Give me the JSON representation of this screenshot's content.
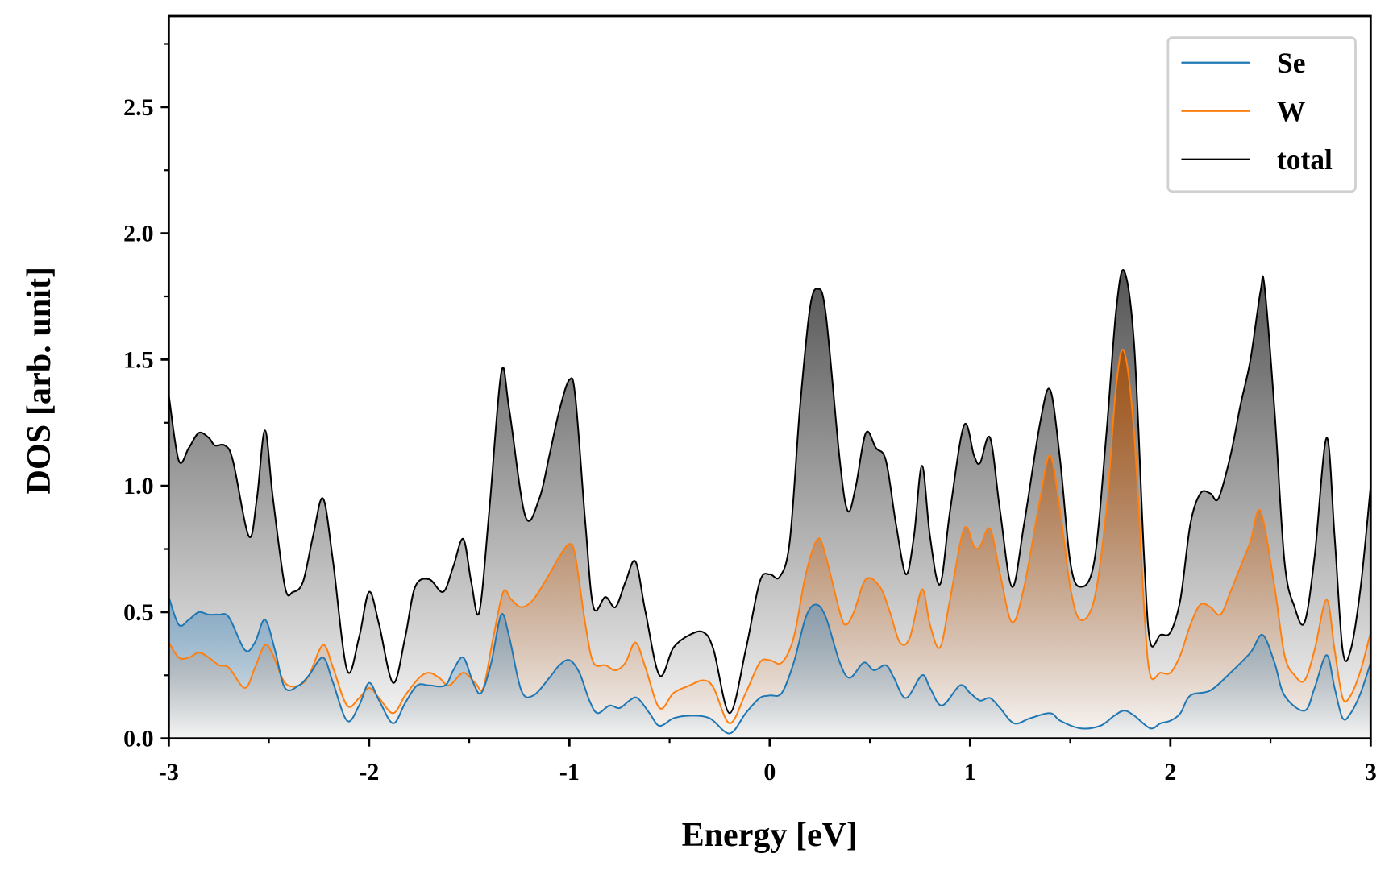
{
  "chart_data": {
    "type": "area",
    "title": "",
    "xlabel": "Energy [eV]",
    "ylabel": "DOS [arb. unit]",
    "xlim": [
      -3,
      3
    ],
    "ylim": [
      0,
      2.86
    ],
    "xticks": [
      -3,
      -2,
      -1,
      0,
      1,
      2,
      3
    ],
    "xtick_labels": [
      "-3",
      "-2",
      "-1",
      "0",
      "1",
      "2",
      "3"
    ],
    "yticks": [
      0,
      0.5,
      1,
      1.5,
      2,
      2.5
    ],
    "ytick_labels": [
      "0.0",
      "0.5",
      "1.0",
      "1.5",
      "2.0",
      "2.5"
    ],
    "grid": false,
    "legend_placement": "top-right",
    "series": [
      {
        "name": "Se",
        "color": "#1f77b4",
        "fill": "#1f77b4",
        "x": [
          -3,
          -2.95,
          -2.9,
          -2.85,
          -2.8,
          -2.75,
          -2.7,
          -2.62,
          -2.57,
          -2.52,
          -2.47,
          -2.42,
          -2.35,
          -2.3,
          -2.23,
          -2.18,
          -2.11,
          -2.05,
          -2,
          -1.95,
          -1.88,
          -1.82,
          -1.76,
          -1.7,
          -1.62,
          -1.58,
          -1.53,
          -1.48,
          -1.44,
          -1.39,
          -1.34,
          -1.3,
          -1.24,
          -1.18,
          -1.1,
          -1.05,
          -1,
          -0.95,
          -0.9,
          -0.86,
          -0.8,
          -0.75,
          -0.7,
          -0.66,
          -0.6,
          -0.55,
          -0.48,
          -0.4,
          -0.3,
          -0.2,
          -0.12,
          -0.05,
          0,
          0.06,
          0.12,
          0.18,
          0.23,
          0.28,
          0.35,
          0.4,
          0.47,
          0.52,
          0.58,
          0.62,
          0.68,
          0.76,
          0.8,
          0.86,
          0.95,
          1,
          1.05,
          1.1,
          1.15,
          1.22,
          1.3,
          1.4,
          1.45,
          1.55,
          1.65,
          1.72,
          1.77,
          1.82,
          1.9,
          1.95,
          2,
          2.05,
          2.1,
          2.2,
          2.3,
          2.4,
          2.46,
          2.52,
          2.57,
          2.67,
          2.72,
          2.78,
          2.82,
          2.86,
          2.9,
          2.95,
          3
        ],
        "y": [
          0.56,
          0.45,
          0.47,
          0.5,
          0.49,
          0.49,
          0.48,
          0.35,
          0.38,
          0.47,
          0.35,
          0.2,
          0.21,
          0.25,
          0.32,
          0.22,
          0.07,
          0.13,
          0.22,
          0.15,
          0.06,
          0.14,
          0.21,
          0.21,
          0.21,
          0.27,
          0.32,
          0.22,
          0.18,
          0.3,
          0.49,
          0.4,
          0.19,
          0.17,
          0.24,
          0.29,
          0.31,
          0.26,
          0.15,
          0.1,
          0.13,
          0.12,
          0.15,
          0.16,
          0.1,
          0.05,
          0.08,
          0.09,
          0.08,
          0.02,
          0.1,
          0.16,
          0.17,
          0.18,
          0.3,
          0.48,
          0.53,
          0.48,
          0.3,
          0.24,
          0.3,
          0.27,
          0.29,
          0.24,
          0.16,
          0.25,
          0.2,
          0.13,
          0.21,
          0.18,
          0.15,
          0.16,
          0.12,
          0.06,
          0.08,
          0.1,
          0.07,
          0.04,
          0.05,
          0.09,
          0.11,
          0.09,
          0.04,
          0.06,
          0.07,
          0.1,
          0.17,
          0.19,
          0.26,
          0.34,
          0.41,
          0.3,
          0.17,
          0.11,
          0.2,
          0.33,
          0.2,
          0.08,
          0.1,
          0.18,
          0.3
        ]
      },
      {
        "name": "W",
        "color": "#ff7f0e",
        "fill": "#a0500f",
        "x": [
          -3,
          -2.95,
          -2.9,
          -2.85,
          -2.8,
          -2.75,
          -2.7,
          -2.62,
          -2.57,
          -2.52,
          -2.48,
          -2.42,
          -2.35,
          -2.3,
          -2.23,
          -2.18,
          -2.11,
          -2.05,
          -2,
          -1.95,
          -1.88,
          -1.82,
          -1.75,
          -1.7,
          -1.65,
          -1.6,
          -1.53,
          -1.47,
          -1.43,
          -1.38,
          -1.33,
          -1.29,
          -1.24,
          -1.18,
          -1.1,
          -1.05,
          -1,
          -0.97,
          -0.92,
          -0.88,
          -0.82,
          -0.77,
          -0.72,
          -0.67,
          -0.62,
          -0.55,
          -0.48,
          -0.4,
          -0.33,
          -0.28,
          -0.2,
          -0.12,
          -0.05,
          0,
          0.06,
          0.12,
          0.18,
          0.24,
          0.28,
          0.35,
          0.38,
          0.42,
          0.48,
          0.55,
          0.6,
          0.65,
          0.7,
          0.76,
          0.8,
          0.85,
          0.9,
          0.97,
          1.02,
          1.05,
          1.1,
          1.15,
          1.21,
          1.27,
          1.35,
          1.4,
          1.45,
          1.5,
          1.55,
          1.62,
          1.68,
          1.73,
          1.77,
          1.82,
          1.87,
          1.9,
          1.95,
          2,
          2.05,
          2.1,
          2.15,
          2.2,
          2.25,
          2.3,
          2.35,
          2.4,
          2.45,
          2.52,
          2.57,
          2.62,
          2.67,
          2.72,
          2.78,
          2.82,
          2.86,
          2.9,
          2.95,
          3
        ],
        "y": [
          0.38,
          0.32,
          0.32,
          0.34,
          0.32,
          0.29,
          0.28,
          0.2,
          0.28,
          0.37,
          0.33,
          0.22,
          0.21,
          0.25,
          0.37,
          0.28,
          0.13,
          0.16,
          0.2,
          0.16,
          0.1,
          0.17,
          0.24,
          0.26,
          0.24,
          0.21,
          0.26,
          0.22,
          0.2,
          0.4,
          0.58,
          0.55,
          0.52,
          0.55,
          0.65,
          0.72,
          0.77,
          0.72,
          0.45,
          0.3,
          0.29,
          0.27,
          0.3,
          0.38,
          0.28,
          0.12,
          0.18,
          0.21,
          0.23,
          0.2,
          0.06,
          0.18,
          0.3,
          0.31,
          0.3,
          0.4,
          0.65,
          0.79,
          0.72,
          0.5,
          0.45,
          0.5,
          0.63,
          0.6,
          0.5,
          0.38,
          0.4,
          0.59,
          0.45,
          0.36,
          0.55,
          0.83,
          0.76,
          0.76,
          0.83,
          0.65,
          0.46,
          0.6,
          0.95,
          1.12,
          0.9,
          0.6,
          0.47,
          0.55,
          0.9,
          1.4,
          1.53,
          1.2,
          0.5,
          0.25,
          0.26,
          0.26,
          0.33,
          0.45,
          0.53,
          0.52,
          0.49,
          0.58,
          0.68,
          0.78,
          0.9,
          0.6,
          0.33,
          0.25,
          0.23,
          0.35,
          0.55,
          0.35,
          0.16,
          0.17,
          0.27,
          0.42
        ]
      },
      {
        "name": "total",
        "color": "#000000",
        "fill": "#4a4a4a",
        "x": [
          -3,
          -2.95,
          -2.9,
          -2.85,
          -2.8,
          -2.77,
          -2.72,
          -2.68,
          -2.6,
          -2.56,
          -2.52,
          -2.48,
          -2.42,
          -2.38,
          -2.33,
          -2.28,
          -2.23,
          -2.18,
          -2.11,
          -2.05,
          -2,
          -1.95,
          -1.88,
          -1.82,
          -1.77,
          -1.7,
          -1.63,
          -1.58,
          -1.53,
          -1.49,
          -1.45,
          -1.4,
          -1.34,
          -1.3,
          -1.22,
          -1.15,
          -1.1,
          -1.05,
          -1,
          -0.97,
          -0.92,
          -0.88,
          -0.82,
          -0.77,
          -0.72,
          -0.67,
          -0.62,
          -0.55,
          -0.48,
          -0.4,
          -0.33,
          -0.28,
          -0.2,
          -0.12,
          -0.05,
          0,
          0.05,
          0.1,
          0.15,
          0.2,
          0.24,
          0.28,
          0.35,
          0.39,
          0.43,
          0.48,
          0.53,
          0.58,
          0.63,
          0.68,
          0.72,
          0.76,
          0.8,
          0.85,
          0.9,
          0.97,
          1.02,
          1.05,
          1.1,
          1.15,
          1.21,
          1.27,
          1.35,
          1.4,
          1.45,
          1.5,
          1.55,
          1.62,
          1.68,
          1.73,
          1.77,
          1.82,
          1.87,
          1.9,
          1.95,
          2,
          2.05,
          2.1,
          2.15,
          2.2,
          2.24,
          2.3,
          2.35,
          2.4,
          2.45,
          2.47,
          2.52,
          2.57,
          2.62,
          2.67,
          2.72,
          2.78,
          2.82,
          2.86,
          2.9,
          2.95,
          3
        ],
        "y": [
          1.36,
          1.1,
          1.15,
          1.21,
          1.19,
          1.16,
          1.16,
          1.1,
          0.8,
          0.95,
          1.22,
          0.95,
          0.6,
          0.58,
          0.62,
          0.8,
          0.95,
          0.7,
          0.27,
          0.4,
          0.58,
          0.45,
          0.22,
          0.4,
          0.6,
          0.63,
          0.58,
          0.68,
          0.79,
          0.62,
          0.5,
          0.9,
          1.45,
          1.3,
          0.88,
          0.95,
          1.12,
          1.3,
          1.42,
          1.35,
          0.85,
          0.52,
          0.56,
          0.52,
          0.62,
          0.7,
          0.5,
          0.25,
          0.36,
          0.41,
          0.42,
          0.35,
          0.1,
          0.35,
          0.62,
          0.65,
          0.64,
          0.78,
          1.3,
          1.7,
          1.78,
          1.68,
          1.1,
          0.9,
          1,
          1.21,
          1.15,
          1.1,
          0.85,
          0.65,
          0.8,
          1.08,
          0.8,
          0.61,
          0.9,
          1.24,
          1.12,
          1.09,
          1.19,
          0.9,
          0.6,
          0.85,
          1.25,
          1.38,
          1.1,
          0.7,
          0.6,
          0.7,
          1.2,
          1.7,
          1.85,
          1.55,
          0.7,
          0.38,
          0.41,
          0.42,
          0.55,
          0.85,
          0.97,
          0.97,
          0.95,
          1.12,
          1.32,
          1.5,
          1.77,
          1.79,
          1.3,
          0.7,
          0.52,
          0.46,
          0.72,
          1.19,
          0.8,
          0.35,
          0.35,
          0.6,
          1
        ]
      }
    ]
  }
}
